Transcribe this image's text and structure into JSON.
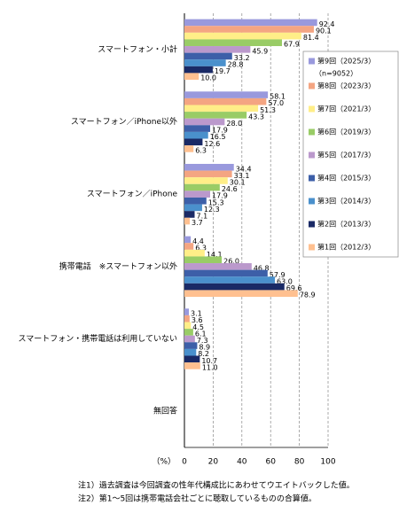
{
  "chart_data": {
    "type": "bar",
    "orientation": "horizontal",
    "categories": [
      "スマートフォン・小計",
      "スマートフォン／iPhone以外",
      "スマートフォン／iPhone",
      "携帯電話　※スマートフォン以外",
      "スマートフォン・携帯電話は利用していない",
      "無回答"
    ],
    "series": [
      {
        "name": "第9回（2025/3）",
        "note": "（n=9052）",
        "color": "#9999dd",
        "values": [
          92.4,
          58.1,
          34.4,
          4.4,
          3.1,
          null
        ],
        "value_labels": [
          "92.4",
          "58.1",
          "34.4",
          "4.4",
          "3.1",
          null
        ]
      },
      {
        "name": "第8回（2023/3）",
        "color": "#f4a582",
        "values": [
          90.1,
          57.0,
          33.1,
          6.3,
          3.6,
          null
        ],
        "value_labels": [
          "90.1",
          "57.0",
          "33.1",
          "6.3",
          "3.6",
          null
        ]
      },
      {
        "name": "第7回（2021/3）",
        "color": "#ffee88",
        "values": [
          81.4,
          51.3,
          30.1,
          14.1,
          4.5,
          null
        ],
        "value_labels": [
          "81.4",
          "51.3",
          "30.1",
          "14.1",
          "4.5",
          null
        ]
      },
      {
        "name": "第6回（2019/3）",
        "color": "#99cc66",
        "values": [
          67.9,
          43.3,
          24.6,
          26.0,
          6.1,
          null
        ],
        "value_labels": [
          "67.9",
          "43.3",
          "24.6",
          "26.0",
          "6.1",
          null
        ]
      },
      {
        "name": "第5回（2017/3）",
        "color": "#bb99cc",
        "values": [
          45.9,
          28.0,
          17.9,
          46.8,
          7.3,
          null
        ],
        "value_labels": [
          "45.9",
          "28.0",
          "17.9",
          "46.8",
          "7.3",
          null
        ]
      },
      {
        "name": "第4回（2015/3）",
        "color": "#3d5fa8",
        "values": [
          33.2,
          17.9,
          15.3,
          57.9,
          8.9,
          null
        ],
        "value_labels": [
          "33.2",
          "17.9",
          "15.3",
          "57.9",
          "8.9",
          null
        ]
      },
      {
        "name": "第3回（2014/3）",
        "color": "#4a90cc",
        "values": [
          28.8,
          16.5,
          12.3,
          63.0,
          8.2,
          null
        ],
        "value_labels": [
          "28.8",
          "16.5",
          "12.3",
          "63.0",
          "8.2",
          null
        ]
      },
      {
        "name": "第2回（2013/3）",
        "color": "#1a2a66",
        "values": [
          19.7,
          12.6,
          7.1,
          69.6,
          10.7,
          null
        ],
        "value_labels": [
          "19.7",
          "12.6",
          "7.1",
          "69.6",
          "10.7",
          null
        ]
      },
      {
        "name": "第1回（2012/3）",
        "color": "#ffc090",
        "values": [
          10.0,
          6.3,
          3.7,
          78.9,
          11.0,
          null
        ],
        "value_labels": [
          "10.0",
          "6.3",
          "3.7",
          "78.9",
          "11.0",
          null
        ]
      }
    ],
    "xlim": [
      0,
      100
    ],
    "xticks": [
      0,
      20,
      40,
      60,
      80,
      100
    ],
    "x_unit": "（%）",
    "grid": true,
    "notes": [
      "注1）過去調査は今回調査の性年代構成比にあわせてウエイトバックした値。",
      "注2）第1～5回は携帯電話会社ごとに聴取しているものの合算値。"
    ]
  }
}
